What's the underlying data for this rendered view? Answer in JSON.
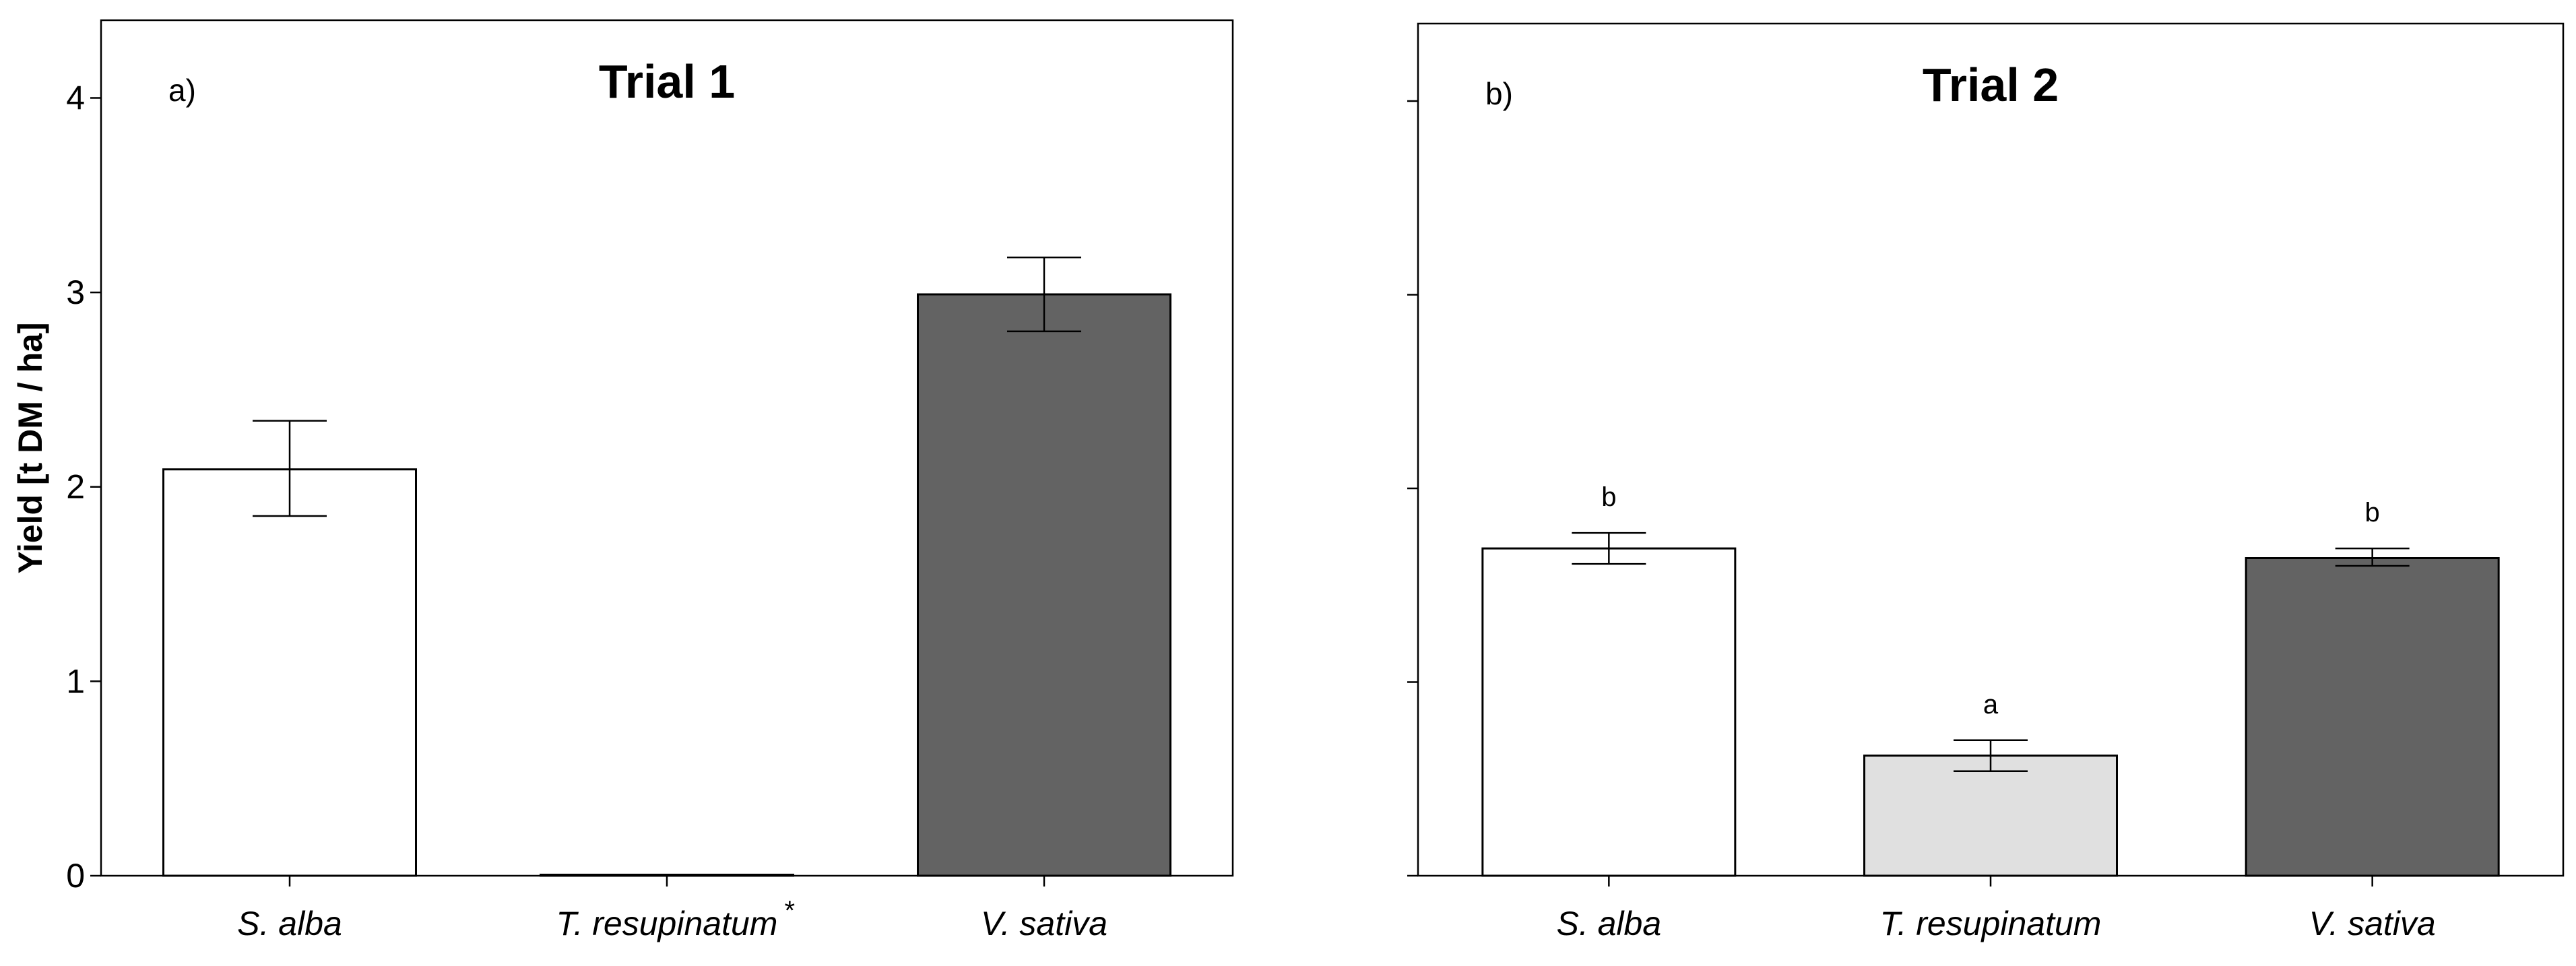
{
  "figure": {
    "ylabel": "Yield [t DM / ha]"
  },
  "chart_data": [
    {
      "type": "bar",
      "panel_label": "a)",
      "title": "Trial 1",
      "ylabel": "Yield [t DM / ha]",
      "ylim": [
        0,
        4.4
      ],
      "yticks": [
        0,
        1,
        2,
        3,
        4
      ],
      "grid": false,
      "categories": [
        "S. alba",
        "T. resupinatum",
        "V. sativa"
      ],
      "category_marks": [
        "",
        "*",
        ""
      ],
      "values": [
        2.09,
        0.0,
        2.99
      ],
      "error_low": [
        1.85,
        0.0,
        2.8
      ],
      "error_high": [
        2.34,
        0.0,
        3.18
      ],
      "bar_colors": [
        "#ffffff",
        "#e0e0e0",
        "#636363"
      ],
      "annotations": [
        "",
        "",
        ""
      ]
    },
    {
      "type": "bar",
      "panel_label": "b)",
      "title": "Trial 2",
      "ylabel": "",
      "ylim": [
        0,
        4.4
      ],
      "yticks": [
        0,
        1,
        2,
        3,
        4
      ],
      "show_tick_labels": false,
      "grid": false,
      "categories": [
        "S. alba",
        "T. resupinatum",
        "V. sativa"
      ],
      "category_marks": [
        "",
        "",
        ""
      ],
      "values": [
        1.69,
        0.62,
        1.64
      ],
      "error_low": [
        1.61,
        0.54,
        1.6
      ],
      "error_high": [
        1.77,
        0.7,
        1.69
      ],
      "bar_colors": [
        "#ffffff",
        "#e0e0e0",
        "#636363"
      ],
      "annotations": [
        "b",
        "a",
        "b"
      ]
    }
  ]
}
